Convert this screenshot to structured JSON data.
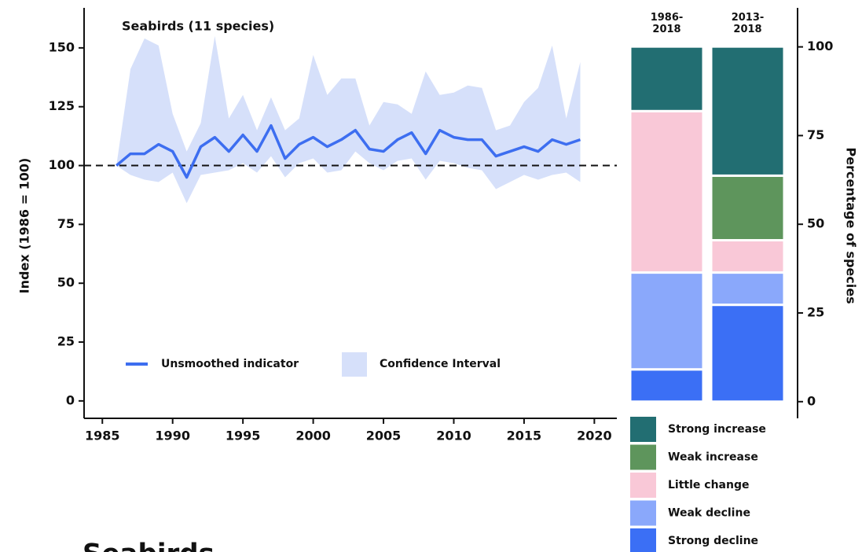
{
  "chart_data": [
    {
      "type": "line",
      "title": "Seabirds (11 species)",
      "y_label": "Index (1986 = 100)",
      "x": [
        1986,
        1987,
        1988,
        1989,
        1990,
        1991,
        1992,
        1993,
        1994,
        1995,
        1996,
        1997,
        1998,
        1999,
        2000,
        2001,
        2002,
        2003,
        2004,
        2005,
        2006,
        2007,
        2008,
        2009,
        2010,
        2011,
        2012,
        2013,
        2014,
        2015,
        2016,
        2017,
        2018,
        2019
      ],
      "series": [
        {
          "name": "Unsmoothed indicator",
          "color": "#3d6ef0",
          "values": [
            100,
            105,
            105,
            109,
            106,
            95,
            108,
            112,
            106,
            113,
            106,
            117,
            103,
            109,
            112,
            108,
            111,
            115,
            107,
            106,
            111,
            114,
            105,
            115,
            112,
            111,
            111,
            104,
            106,
            108,
            106,
            111,
            109,
            111
          ]
        }
      ],
      "confidence_interval": {
        "name": "Confidence Interval",
        "color": "#d6e0fa",
        "lower": [
          100,
          96,
          94,
          93,
          97,
          84,
          96,
          97,
          98,
          101,
          97,
          104,
          95,
          101,
          103,
          97,
          98,
          106,
          101,
          98,
          102,
          103,
          94,
          102,
          101,
          99,
          98,
          90,
          93,
          96,
          94,
          96,
          97,
          93
        ],
        "upper": [
          100,
          141,
          154,
          151,
          122,
          106,
          118,
          155,
          120,
          130,
          115,
          129,
          115,
          120,
          147,
          130,
          137,
          137,
          117,
          127,
          126,
          122,
          140,
          130,
          131,
          134,
          133,
          115,
          117,
          127,
          133,
          151,
          120,
          144
        ]
      },
      "reference_line": 100,
      "xlim": [
        1983.7,
        2021.6
      ],
      "xticks": [
        1985,
        1990,
        1995,
        2000,
        2005,
        2010,
        2015,
        2020
      ],
      "ylim": [
        -7.4,
        167
      ],
      "yticks": [
        0,
        25,
        50,
        75,
        100,
        125,
        150
      ]
    },
    {
      "type": "stacked_bar",
      "y_label": "Percentage of species",
      "categories": [
        "1986-2018",
        "2013-2018"
      ],
      "series": [
        {
          "name": "Strong decline",
          "color": "#3b6ff5",
          "values": [
            9.1,
            27.3
          ]
        },
        {
          "name": "Weak decline",
          "color": "#8aa8fb",
          "values": [
            27.3,
            9.1
          ]
        },
        {
          "name": "Little change",
          "color": "#f9c8d7",
          "values": [
            45.5,
            9.1
          ]
        },
        {
          "name": "Weak increase",
          "color": "#5e955c",
          "values": [
            0,
            18.2
          ]
        },
        {
          "name": "Strong increase",
          "color": "#226e72",
          "values": [
            18.2,
            36.4
          ]
        }
      ],
      "ylim": [
        -4.7,
        111
      ],
      "yticks": [
        0,
        25,
        50,
        75,
        100
      ]
    }
  ],
  "heading": "Seabirds"
}
